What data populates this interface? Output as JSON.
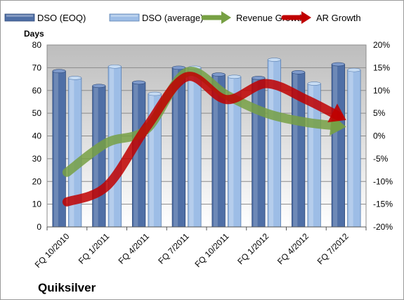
{
  "chart_data": {
    "type": "bar",
    "title": "",
    "company_label": "Quiksilver",
    "ylabel": "Days",
    "ylim": [
      0,
      80
    ],
    "y_ticks": [
      0,
      10,
      20,
      30,
      40,
      50,
      60,
      70,
      80
    ],
    "y2lim": [
      -20,
      20
    ],
    "y2_ticks": [
      "-20%",
      "-15%",
      "-10%",
      "-5%",
      "0%",
      "5%",
      "10%",
      "15%",
      "20%"
    ],
    "categories": [
      "FQ 10/2010",
      "FQ 1/2011",
      "FQ 4/2011",
      "FQ 7/2011",
      "FQ 10/2011",
      "FQ 1/2012",
      "FQ 4/2012",
      "FQ 7/2012"
    ],
    "series": [
      {
        "name": "DSO (EOQ)",
        "values": [
          68.5,
          62,
          63.5,
          70,
          67,
          65.5,
          68,
          71.5
        ],
        "color": "#4f6fa6",
        "axis": "left"
      },
      {
        "name": "DSO (average)",
        "values": [
          65.5,
          70.5,
          58.5,
          70,
          66,
          73.5,
          63,
          69
        ],
        "color": "#9dbde6",
        "axis": "left"
      },
      {
        "name": "Revenue Growth",
        "values": [
          -8,
          -1.5,
          1.5,
          14,
          9,
          5,
          3,
          2
        ],
        "color": "#77a044",
        "axis": "right"
      },
      {
        "name": "AR Growth",
        "values": [
          -14.5,
          -11,
          2,
          13,
          8,
          11.5,
          8,
          3.5
        ],
        "color": "#c00000",
        "axis": "right"
      }
    ],
    "legend_position": "top",
    "grid": true
  }
}
